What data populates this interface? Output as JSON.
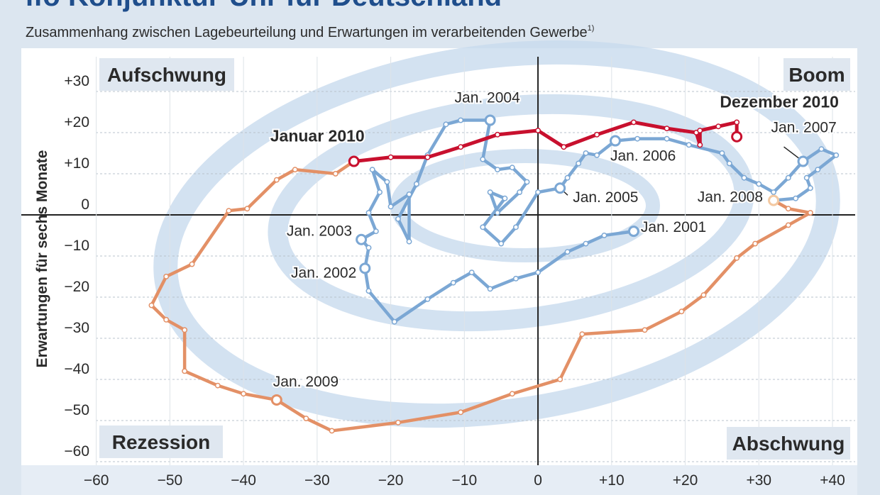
{
  "chart_data": {
    "type": "line",
    "title": "ifo Konjunktur-Uhr für Deutschland",
    "subtitle": "Zusammenhang zwischen Lagebeurteilung und Erwartungen im verarbeitenden Gewerbe",
    "subtitle_note": "1)",
    "y_label": "Erwartungen für sechs Monate",
    "xlim": [
      -64.4,
      42.6
    ],
    "ylim": [
      -60.7,
      39.3
    ],
    "xticks": [
      {
        "value": -60,
        "label": "−60"
      },
      {
        "value": -50,
        "label": "−50"
      },
      {
        "value": -40,
        "label": "−40"
      },
      {
        "value": -30,
        "label": "−30"
      },
      {
        "value": -20,
        "label": "−20"
      },
      {
        "value": -10,
        "label": "−10"
      },
      0,
      {
        "value": 10,
        "label": "+10"
      },
      {
        "value": 20,
        "label": "+20"
      },
      {
        "value": 30,
        "label": "+30"
      },
      {
        "value": 40,
        "label": "+40"
      }
    ],
    "yticks": [
      {
        "value": 30,
        "label": "+30"
      },
      {
        "value": 20,
        "label": "+20"
      },
      {
        "value": 10,
        "label": "+10"
      },
      0,
      {
        "value": -10,
        "label": "−10"
      },
      {
        "value": -20,
        "label": "−20"
      },
      {
        "value": -30,
        "label": "−30"
      },
      {
        "value": -40,
        "label": "−40"
      },
      {
        "value": -50,
        "label": "−50"
      },
      {
        "value": -60,
        "label": "−60"
      }
    ],
    "grid": true,
    "quadrant_labels": [
      {
        "text": "Aufschwung",
        "corner": "top-left"
      },
      {
        "text": "Boom",
        "corner": "top-right"
      },
      {
        "text": "Rezession",
        "corner": "bottom-left"
      },
      {
        "text": "Abschwung",
        "corner": "bottom-right"
      }
    ],
    "series": [
      {
        "color": "#7ba7d4",
        "x": [
          13,
          9,
          6.5,
          4,
          0,
          -3,
          -6.5,
          -9,
          -11.5,
          -15,
          -19.5,
          -23,
          -23.5,
          -23,
          -24,
          -22,
          -23,
          -21.5,
          -22.5,
          -20.5,
          -20,
          -17.5,
          -17.5,
          -19,
          -16.5,
          -15,
          -12.5,
          -10.5,
          -6.5,
          -7.5,
          -5.5,
          -3.5,
          -1.5,
          -2.5,
          -5.5,
          -6.5,
          -4.5,
          -7.5,
          -5,
          -3,
          0,
          3,
          4,
          5.5,
          6.5,
          8,
          10.5,
          13.5,
          17.5,
          20.5,
          25,
          26,
          28,
          30,
          32,
          34,
          36,
          38.5,
          40.5,
          38,
          36.5,
          37,
          35,
          32
        ],
        "values": [
          -4,
          -5,
          -7,
          -9,
          -14,
          -15.5,
          -18,
          -14,
          -16.5,
          -20.5,
          -26,
          -18.5,
          -13,
          -8,
          -6,
          -4,
          0.5,
          5.5,
          11,
          8,
          2,
          5,
          -6.5,
          -1,
          7.5,
          14.5,
          22,
          23,
          23,
          13.5,
          11,
          11.5,
          8,
          5.5,
          0.5,
          5.5,
          4,
          -3,
          -7,
          -3,
          5.5,
          6.5,
          9,
          12.5,
          15,
          14.5,
          18,
          18.5,
          18.5,
          17,
          15,
          12.5,
          9,
          7.5,
          5.5,
          9,
          13,
          16,
          14.5,
          11,
          9,
          6.5,
          4,
          3.5
        ]
      },
      {
        "color": "#e39066",
        "x": [
          32,
          34,
          37,
          34,
          29.5,
          27,
          22.5,
          19.5,
          14.5,
          6,
          3,
          -3.5,
          -10.5,
          -19,
          -28,
          -31.5,
          -35.5,
          -40,
          -43.5,
          -48,
          -48,
          -50.5,
          -52.5,
          -50.5,
          -47,
          -42,
          -39.5,
          -35.5,
          -33,
          -27.5,
          -25
        ],
        "values": [
          3.5,
          1.5,
          0.5,
          -2.5,
          -7,
          -10.5,
          -19.5,
          -23.5,
          -28,
          -29,
          -40,
          -43.5,
          -48,
          -50.5,
          -52.5,
          -49.5,
          -45,
          -43.5,
          -41.5,
          -38,
          -28,
          -25.5,
          -22,
          -15,
          -12,
          1,
          1.5,
          8.5,
          11,
          10,
          13
        ]
      },
      {
        "color": "#c8102e",
        "x": [
          -25,
          -20,
          -15,
          -10.5,
          -5.5,
          0,
          3.5,
          8,
          13,
          17.5,
          21.5,
          22,
          22,
          24.5,
          27,
          27
        ],
        "values": [
          13,
          14,
          14,
          16.5,
          19.5,
          20.5,
          16.5,
          19.5,
          22.5,
          21,
          20,
          17,
          20.5,
          21.5,
          22.5,
          19
        ]
      }
    ],
    "annotations": [
      {
        "text": "Jan. 2001",
        "x": 13,
        "y": -4
      },
      {
        "text": "Jan. 2002",
        "x": -23.5,
        "y": -13
      },
      {
        "text": "Jan. 2003",
        "x": -24,
        "y": -6
      },
      {
        "text": "Jan. 2004",
        "x": -6.5,
        "y": 23
      },
      {
        "text": "Jan. 2005",
        "x": 3,
        "y": 6.5
      },
      {
        "text": "Jan. 2006",
        "x": 10.5,
        "y": 18
      },
      {
        "text": "Jan. 2007",
        "x": 36,
        "y": 13
      },
      {
        "text": "Jan. 2008",
        "x": 32,
        "y": 3.5
      },
      {
        "text": "Jan. 2009",
        "x": -35.5,
        "y": -45
      },
      {
        "text": "Januar 2010",
        "x": -25,
        "y": 13
      },
      {
        "text": "Dezember 2010",
        "x": 27,
        "y": 19
      }
    ]
  }
}
